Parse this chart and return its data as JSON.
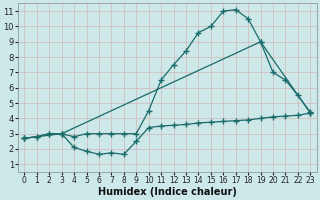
{
  "xlabel": "Humidex (Indice chaleur)",
  "bg_color": "#cce8e8",
  "grid_color": "#c0d8d8",
  "line_color": "#1a6b6b",
  "xlim": [
    -0.5,
    23.5
  ],
  "ylim": [
    0.5,
    11.5
  ],
  "xticks": [
    0,
    1,
    2,
    3,
    4,
    5,
    6,
    7,
    8,
    9,
    10,
    11,
    12,
    13,
    14,
    15,
    16,
    17,
    18,
    19,
    20,
    21,
    22,
    23
  ],
  "yticks": [
    1,
    2,
    3,
    4,
    5,
    6,
    7,
    8,
    9,
    10,
    11
  ],
  "line1_x": [
    0,
    1,
    2,
    3,
    4,
    5,
    6,
    7,
    8,
    9,
    10,
    11,
    12,
    13,
    14,
    15,
    16,
    17,
    18,
    19,
    20,
    21,
    22,
    23
  ],
  "line1_y": [
    2.7,
    2.8,
    3.0,
    3.0,
    2.1,
    1.85,
    1.65,
    1.75,
    1.65,
    2.5,
    3.4,
    3.5,
    3.55,
    3.6,
    3.7,
    3.75,
    3.8,
    3.85,
    3.9,
    4.0,
    4.1,
    4.15,
    4.2,
    4.35
  ],
  "line2_x": [
    0,
    1,
    2,
    3,
    4,
    5,
    6,
    7,
    8,
    9,
    10,
    11,
    12,
    13,
    14,
    15,
    16,
    17,
    18,
    19,
    20,
    21,
    22,
    23
  ],
  "line2_y": [
    2.7,
    2.8,
    3.0,
    3.0,
    2.8,
    3.0,
    3.0,
    3.0,
    3.0,
    3.0,
    4.5,
    6.5,
    7.5,
    8.4,
    9.6,
    10.0,
    11.0,
    11.1,
    10.5,
    9.0,
    7.0,
    6.5,
    5.5,
    4.4
  ],
  "line3_x": [
    0,
    3,
    19,
    23
  ],
  "line3_y": [
    2.7,
    3.0,
    9.0,
    4.35
  ],
  "marker_style": "+",
  "markersize": 4,
  "linewidth": 0.9
}
